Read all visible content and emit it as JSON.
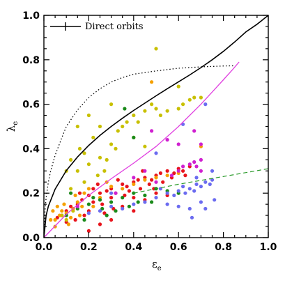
{
  "chart_data": {
    "type": "scatter",
    "xlabel": "ε",
    "xlabel_sub": "e",
    "ylabel": "λ",
    "ylabel_sub": "e",
    "xlim": [
      0,
      1
    ],
    "ylim": [
      0,
      1
    ],
    "x_ticks": [
      "0.0",
      "0.2",
      "0.4",
      "0.6",
      "0.8",
      "1.0"
    ],
    "y_ticks": [
      "0.0",
      "0.2",
      "0.4",
      "0.6",
      "0.8",
      "1.0"
    ],
    "legend": {
      "label": "Direct orbits",
      "position": "top-left"
    },
    "colors": {
      "red": "#e8141c",
      "yellow": "#c8c000",
      "orange": "#f5a000",
      "green": "#1a8a1a",
      "blue": "#6b6bf0",
      "magenta": "#d020d0",
      "solid_curve": "#000000",
      "dotted_curve": "#000000",
      "pink_curve": "#e040e0",
      "green_dash": "#2a9a2a"
    },
    "curves": {
      "solid": [
        [
          0,
          0
        ],
        [
          0.01,
          0.1
        ],
        [
          0.02,
          0.141
        ],
        [
          0.05,
          0.218
        ],
        [
          0.1,
          0.302
        ],
        [
          0.15,
          0.363
        ],
        [
          0.2,
          0.415
        ],
        [
          0.25,
          0.46
        ],
        [
          0.3,
          0.5
        ],
        [
          0.35,
          0.537
        ],
        [
          0.4,
          0.572
        ],
        [
          0.45,
          0.605
        ],
        [
          0.5,
          0.638
        ],
        [
          0.55,
          0.67
        ],
        [
          0.6,
          0.701
        ],
        [
          0.65,
          0.732
        ],
        [
          0.7,
          0.765
        ],
        [
          0.75,
          0.8
        ],
        [
          0.8,
          0.838
        ],
        [
          0.85,
          0.88
        ],
        [
          0.9,
          0.925
        ],
        [
          0.95,
          0.96
        ],
        [
          1.0,
          1.0
        ]
      ],
      "dotted": [
        [
          0,
          0
        ],
        [
          0.005,
          0.12
        ],
        [
          0.01,
          0.18
        ],
        [
          0.02,
          0.25
        ],
        [
          0.03,
          0.3
        ],
        [
          0.05,
          0.37
        ],
        [
          0.08,
          0.45
        ],
        [
          0.1,
          0.5
        ],
        [
          0.15,
          0.575
        ],
        [
          0.2,
          0.63
        ],
        [
          0.25,
          0.67
        ],
        [
          0.3,
          0.7
        ],
        [
          0.35,
          0.72
        ],
        [
          0.4,
          0.735
        ],
        [
          0.5,
          0.75
        ],
        [
          0.6,
          0.762
        ],
        [
          0.7,
          0.768
        ],
        [
          0.8,
          0.772
        ],
        [
          0.85,
          0.773
        ]
      ],
      "pink": [
        [
          0,
          0
        ],
        [
          0.1,
          0.105
        ],
        [
          0.2,
          0.19
        ],
        [
          0.3,
          0.265
        ],
        [
          0.4,
          0.335
        ],
        [
          0.5,
          0.41
        ],
        [
          0.6,
          0.5
        ],
        [
          0.7,
          0.6
        ],
        [
          0.75,
          0.655
        ],
        [
          0.8,
          0.71
        ],
        [
          0.84,
          0.755
        ],
        [
          0.87,
          0.79
        ]
      ],
      "green_dash": [
        [
          0.4,
          0.2
        ],
        [
          0.6,
          0.24
        ],
        [
          0.8,
          0.275
        ],
        [
          1.0,
          0.31
        ]
      ]
    },
    "series": [
      {
        "color": "red",
        "points": [
          [
            0.1,
            0.12
          ],
          [
            0.12,
            0.14
          ],
          [
            0.15,
            0.15
          ],
          [
            0.17,
            0.17
          ],
          [
            0.2,
            0.19
          ],
          [
            0.22,
            0.16
          ],
          [
            0.25,
            0.2
          ],
          [
            0.28,
            0.21
          ],
          [
            0.3,
            0.22
          ],
          [
            0.32,
            0.2
          ],
          [
            0.35,
            0.24
          ],
          [
            0.37,
            0.23
          ],
          [
            0.4,
            0.25
          ],
          [
            0.42,
            0.26
          ],
          [
            0.45,
            0.27
          ],
          [
            0.48,
            0.26
          ],
          [
            0.5,
            0.28
          ],
          [
            0.52,
            0.29
          ],
          [
            0.55,
            0.3
          ],
          [
            0.58,
            0.29
          ],
          [
            0.6,
            0.31
          ],
          [
            0.62,
            0.3
          ],
          [
            0.3,
            0.18
          ],
          [
            0.26,
            0.15
          ],
          [
            0.2,
            0.12
          ],
          [
            0.18,
            0.1
          ],
          [
            0.14,
            0.08
          ],
          [
            0.1,
            0.07
          ],
          [
            0.35,
            0.14
          ],
          [
            0.4,
            0.18
          ],
          [
            0.45,
            0.17
          ],
          [
            0.5,
            0.2
          ],
          [
            0.55,
            0.19
          ],
          [
            0.22,
            0.22
          ],
          [
            0.33,
            0.26
          ],
          [
            0.38,
            0.21
          ],
          [
            0.43,
            0.22
          ],
          [
            0.47,
            0.24
          ],
          [
            0.53,
            0.25
          ],
          [
            0.57,
            0.27
          ],
          [
            0.63,
            0.28
          ],
          [
            0.27,
            0.11
          ],
          [
            0.31,
            0.13
          ],
          [
            0.16,
            0.2
          ],
          [
            0.08,
            0.1
          ],
          [
            0.06,
            0.09
          ],
          [
            0.4,
            0.12
          ],
          [
            0.3,
            0.08
          ],
          [
            0.25,
            0.06
          ],
          [
            0.2,
            0.03
          ],
          [
            0.65,
            0.32
          ],
          [
            0.44,
            0.3
          ],
          [
            0.49,
            0.22
          ],
          [
            0.36,
            0.19
          ],
          [
            0.24,
            0.24
          ]
        ]
      },
      {
        "color": "yellow",
        "points": [
          [
            0.12,
            0.35
          ],
          [
            0.15,
            0.3
          ],
          [
            0.16,
            0.4
          ],
          [
            0.18,
            0.38
          ],
          [
            0.2,
            0.33
          ],
          [
            0.22,
            0.45
          ],
          [
            0.24,
            0.28
          ],
          [
            0.25,
            0.5
          ],
          [
            0.28,
            0.35
          ],
          [
            0.3,
            0.42
          ],
          [
            0.33,
            0.48
          ],
          [
            0.35,
            0.5
          ],
          [
            0.37,
            0.52
          ],
          [
            0.4,
            0.55
          ],
          [
            0.45,
            0.57
          ],
          [
            0.5,
            0.58
          ],
          [
            0.52,
            0.55
          ],
          [
            0.55,
            0.57
          ],
          [
            0.6,
            0.58
          ],
          [
            0.62,
            0.6
          ],
          [
            0.65,
            0.62
          ],
          [
            0.67,
            0.63
          ],
          [
            0.7,
            0.63
          ],
          [
            0.5,
            0.85
          ],
          [
            0.6,
            0.68
          ],
          [
            0.3,
            0.6
          ],
          [
            0.2,
            0.55
          ],
          [
            0.15,
            0.5
          ],
          [
            0.1,
            0.3
          ],
          [
            0.12,
            0.22
          ],
          [
            0.18,
            0.25
          ],
          [
            0.25,
            0.36
          ],
          [
            0.32,
            0.4
          ],
          [
            0.42,
            0.52
          ],
          [
            0.48,
            0.6
          ],
          [
            0.4,
            0.45
          ],
          [
            0.27,
            0.3
          ],
          [
            0.08,
            0.1
          ],
          [
            0.1,
            0.08
          ],
          [
            0.13,
            0.12
          ],
          [
            0.45,
            0.41
          ]
        ]
      },
      {
        "color": "orange",
        "points": [
          [
            0.05,
            0.08
          ],
          [
            0.07,
            0.1
          ],
          [
            0.08,
            0.12
          ],
          [
            0.1,
            0.11
          ],
          [
            0.12,
            0.09
          ],
          [
            0.13,
            0.13
          ],
          [
            0.15,
            0.16
          ],
          [
            0.17,
            0.14
          ],
          [
            0.05,
            0.05
          ],
          [
            0.04,
            0.12
          ],
          [
            0.09,
            0.15
          ],
          [
            0.11,
            0.06
          ],
          [
            0.14,
            0.19
          ],
          [
            0.06,
            0.14
          ],
          [
            0.3,
            0.23
          ],
          [
            0.35,
            0.22
          ],
          [
            0.4,
            0.24
          ],
          [
            0.45,
            0.26
          ],
          [
            0.5,
            0.27
          ],
          [
            0.55,
            0.28
          ],
          [
            0.6,
            0.29
          ],
          [
            0.2,
            0.22
          ],
          [
            0.25,
            0.18
          ],
          [
            0.7,
            0.41
          ],
          [
            0.03,
            0.08
          ],
          [
            0.16,
            0.1
          ],
          [
            0.18,
            0.2
          ],
          [
            0.22,
            0.14
          ],
          [
            0.48,
            0.7
          ],
          [
            0.28,
            0.25
          ]
        ]
      },
      {
        "color": "green",
        "points": [
          [
            0.1,
            0.1
          ],
          [
            0.15,
            0.13
          ],
          [
            0.2,
            0.15
          ],
          [
            0.25,
            0.17
          ],
          [
            0.3,
            0.16
          ],
          [
            0.35,
            0.18
          ],
          [
            0.4,
            0.2
          ],
          [
            0.45,
            0.19
          ],
          [
            0.5,
            0.22
          ],
          [
            0.55,
            0.21
          ],
          [
            0.28,
            0.1
          ],
          [
            0.32,
            0.12
          ],
          [
            0.38,
            0.14
          ],
          [
            0.42,
            0.16
          ],
          [
            0.12,
            0.2
          ],
          [
            0.22,
            0.18
          ],
          [
            0.4,
            0.45
          ],
          [
            0.36,
            0.58
          ],
          [
            0.18,
            0.08
          ],
          [
            0.6,
            0.2
          ],
          [
            0.48,
            0.16
          ],
          [
            0.26,
            0.13
          ]
        ]
      },
      {
        "color": "blue",
        "points": [
          [
            0.55,
            0.2
          ],
          [
            0.6,
            0.21
          ],
          [
            0.62,
            0.23
          ],
          [
            0.65,
            0.22
          ],
          [
            0.68,
            0.24
          ],
          [
            0.7,
            0.23
          ],
          [
            0.72,
            0.25
          ],
          [
            0.74,
            0.24
          ],
          [
            0.75,
            0.26
          ],
          [
            0.58,
            0.19
          ],
          [
            0.63,
            0.2
          ],
          [
            0.67,
            0.21
          ],
          [
            0.5,
            0.18
          ],
          [
            0.45,
            0.16
          ],
          [
            0.4,
            0.15
          ],
          [
            0.35,
            0.13
          ],
          [
            0.3,
            0.14
          ],
          [
            0.25,
            0.12
          ],
          [
            0.2,
            0.11
          ],
          [
            0.6,
            0.14
          ],
          [
            0.65,
            0.13
          ],
          [
            0.7,
            0.16
          ],
          [
            0.72,
            0.13
          ],
          [
            0.76,
            0.17
          ],
          [
            0.3,
            0.2
          ],
          [
            0.62,
            0.51
          ],
          [
            0.72,
            0.6
          ],
          [
            0.5,
            0.38
          ],
          [
            0.66,
            0.09
          ],
          [
            0.68,
            0.27
          ],
          [
            0.75,
            0.3
          ],
          [
            0.55,
            0.15
          ],
          [
            0.52,
            0.22
          ]
        ]
      },
      {
        "color": "magenta",
        "points": [
          [
            0.6,
            0.3
          ],
          [
            0.62,
            0.32
          ],
          [
            0.65,
            0.33
          ],
          [
            0.67,
            0.34
          ],
          [
            0.7,
            0.35
          ],
          [
            0.68,
            0.32
          ],
          [
            0.55,
            0.44
          ],
          [
            0.6,
            0.42
          ],
          [
            0.7,
            0.42
          ],
          [
            0.48,
            0.48
          ],
          [
            0.32,
            0.2
          ],
          [
            0.45,
            0.3
          ],
          [
            0.4,
            0.27
          ],
          [
            0.15,
            0.14
          ],
          [
            0.5,
            0.25
          ],
          [
            0.57,
            0.28
          ],
          [
            0.7,
            0.3
          ],
          [
            0.67,
            0.48
          ]
        ]
      }
    ]
  }
}
